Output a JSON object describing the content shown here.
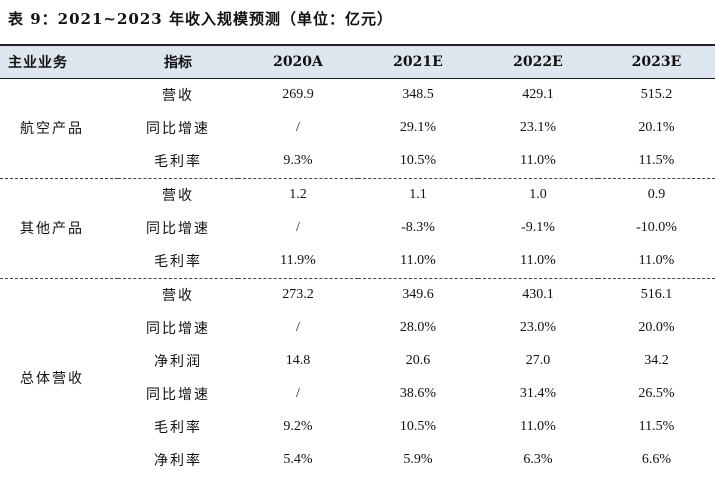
{
  "caption": "表 9：2021~2023 年收入规模预测（单位：亿元）",
  "header": {
    "business": "主业业务",
    "indicator": "指标",
    "years": [
      "2020A",
      "2021E",
      "2022E",
      "2023E"
    ]
  },
  "groups": [
    {
      "name": "航空产品",
      "rows": [
        {
          "indicator": "营收",
          "values": [
            "269.9",
            "348.5",
            "429.1",
            "515.2"
          ]
        },
        {
          "indicator": "同比增速",
          "values": [
            "/",
            "29.1%",
            "23.1%",
            "20.1%"
          ]
        },
        {
          "indicator": "毛利率",
          "values": [
            "9.3%",
            "10.5%",
            "11.0%",
            "11.5%"
          ]
        }
      ]
    },
    {
      "name": "其他产品",
      "rows": [
        {
          "indicator": "营收",
          "values": [
            "1.2",
            "1.1",
            "1.0",
            "0.9"
          ]
        },
        {
          "indicator": "同比增速",
          "values": [
            "/",
            "-8.3%",
            "-9.1%",
            "-10.0%"
          ]
        },
        {
          "indicator": "毛利率",
          "values": [
            "11.9%",
            "11.0%",
            "11.0%",
            "11.0%"
          ]
        }
      ]
    },
    {
      "name": "总体营收",
      "rows": [
        {
          "indicator": "营收",
          "values": [
            "273.2",
            "349.6",
            "430.1",
            "516.1"
          ]
        },
        {
          "indicator": "同比增速",
          "values": [
            "/",
            "28.0%",
            "23.0%",
            "20.0%"
          ]
        },
        {
          "indicator": "净利润",
          "values": [
            "14.8",
            "20.6",
            "27.0",
            "34.2"
          ]
        },
        {
          "indicator": "同比增速",
          "values": [
            "/",
            "38.6%",
            "31.4%",
            "26.5%"
          ]
        },
        {
          "indicator": "毛利率",
          "values": [
            "9.2%",
            "10.5%",
            "11.0%",
            "11.5%"
          ]
        },
        {
          "indicator": "净利率",
          "values": [
            "5.4%",
            "5.9%",
            "6.3%",
            "6.6%"
          ]
        }
      ]
    }
  ]
}
